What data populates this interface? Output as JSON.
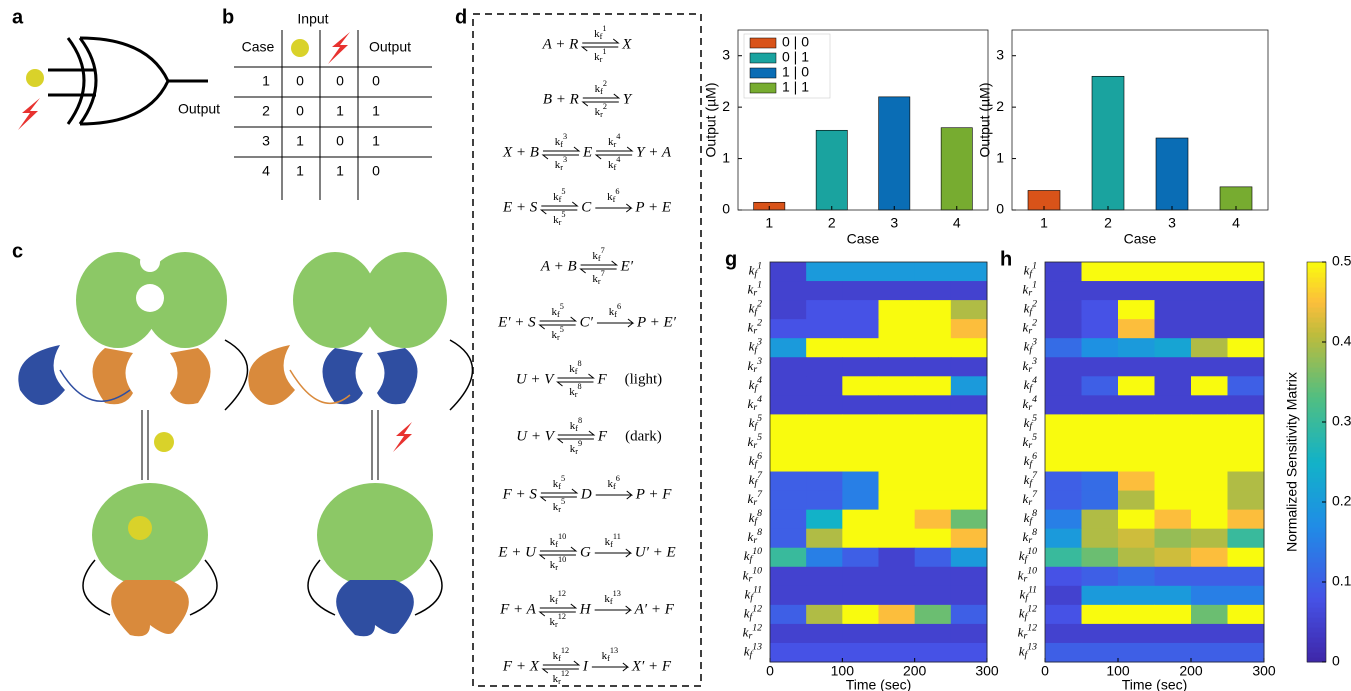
{
  "gate": {
    "label": "a",
    "output": "Output"
  },
  "truth_table": {
    "label": "b",
    "input": "Input",
    "headers": [
      "Case",
      "Output"
    ],
    "rows": [
      [
        1,
        0,
        0,
        0
      ],
      [
        2,
        0,
        1,
        1
      ],
      [
        3,
        1,
        0,
        1
      ],
      [
        4,
        1,
        1,
        0
      ]
    ]
  },
  "mechanism": {
    "label": "c"
  },
  "reactions": {
    "label": "d",
    "equations": [
      {
        "parts": [
          "A + R",
          {
            "top": {
              "k": "k",
              "s": "f",
              "n": "1"
            },
            "bottom": {
              "k": "k",
              "s": "r",
              "n": "1"
            }
          },
          "X"
        ]
      },
      {
        "parts": [
          "B + R",
          {
            "top": {
              "k": "k",
              "s": "f",
              "n": "2"
            },
            "bottom": {
              "k": "k",
              "s": "r",
              "n": "2"
            }
          },
          "Y"
        ]
      },
      {
        "parts": [
          "X + B",
          {
            "top": {
              "k": "k",
              "s": "f",
              "n": "3"
            },
            "bottom": {
              "k": "k",
              "s": "r",
              "n": "3"
            }
          },
          "E",
          {
            "top": {
              "k": "k",
              "s": "r",
              "n": "4"
            },
            "bottom": {
              "k": "k",
              "s": "f",
              "n": "4"
            }
          },
          "Y + A"
        ]
      },
      {
        "parts": [
          "E + S",
          {
            "top": {
              "k": "k",
              "s": "f",
              "n": "5"
            },
            "bottom": {
              "k": "k",
              "s": "r",
              "n": "5"
            }
          },
          "C",
          {
            "top": {
              "k": "k",
              "s": "f",
              "n": "6"
            }
          },
          "P + E"
        ]
      },
      {
        "parts": [
          "A + B",
          {
            "top": {
              "k": "k",
              "s": "f",
              "n": "7"
            },
            "bottom": {
              "k": "k",
              "s": "r",
              "n": "7"
            }
          },
          "E′"
        ]
      },
      {
        "parts": [
          "E′ + S",
          {
            "top": {
              "k": "k",
              "s": "f",
              "n": "5"
            },
            "bottom": {
              "k": "k",
              "s": "r",
              "n": "5"
            }
          },
          "C′",
          {
            "top": {
              "k": "k",
              "s": "f",
              "n": "6"
            }
          },
          "P + E′"
        ]
      },
      {
        "parts": [
          "U + V",
          {
            "top": {
              "k": "k",
              "s": "f",
              "n": "8"
            },
            "bottom": {
              "k": "k",
              "s": "r",
              "n": "8"
            }
          },
          "F"
        ],
        "note": "(light)"
      },
      {
        "parts": [
          "U + V",
          {
            "top": {
              "k": "k",
              "s": "f",
              "n": "8"
            },
            "bottom": {
              "k": "k",
              "s": "r",
              "n": "9"
            }
          },
          "F"
        ],
        "note": "(dark)"
      },
      {
        "parts": [
          "F + S",
          {
            "top": {
              "k": "k",
              "s": "f",
              "n": "5"
            },
            "bottom": {
              "k": "k",
              "s": "r",
              "n": "5"
            }
          },
          "D",
          {
            "top": {
              "k": "k",
              "s": "f",
              "n": "6"
            }
          },
          "P + F"
        ]
      },
      {
        "parts": [
          "E + U",
          {
            "top": {
              "k": "k",
              "s": "f",
              "n": "10"
            },
            "bottom": {
              "k": "k",
              "s": "r",
              "n": "10"
            }
          },
          "G",
          {
            "top": {
              "k": "k",
              "s": "f",
              "n": "11"
            }
          },
          "U′ + E"
        ]
      },
      {
        "parts": [
          "F + A",
          {
            "top": {
              "k": "k",
              "s": "f",
              "n": "12"
            },
            "bottom": {
              "k": "k",
              "s": "r",
              "n": "12"
            }
          },
          "H",
          {
            "top": {
              "k": "k",
              "s": "f",
              "n": "13"
            }
          },
          "A′ + F"
        ]
      },
      {
        "parts": [
          "F + X",
          {
            "top": {
              "k": "k",
              "s": "f",
              "n": "12"
            },
            "bottom": {
              "k": "k",
              "s": "r",
              "n": "12"
            }
          },
          "I",
          {
            "top": {
              "k": "k",
              "s": "f",
              "n": "13"
            }
          },
          "X′ + F"
        ]
      }
    ]
  },
  "chart_data": [
    {
      "type": "bar",
      "categories": [
        "1",
        "2",
        "3",
        "4"
      ],
      "values": [
        0.15,
        1.55,
        2.2,
        1.6
      ],
      "colors": [
        "#d95319",
        "#1aa39f",
        "#0a6db5",
        "#77ac30"
      ],
      "legend": [
        "0 | 0",
        "0 | 1",
        "1 | 0",
        "1 | 1"
      ],
      "xlabel": "Case",
      "ylabel": "Output (µM)",
      "ylim": [
        0,
        3.5
      ],
      "yticks": [
        0,
        1,
        2,
        3
      ]
    },
    {
      "type": "bar",
      "categories": [
        "1",
        "2",
        "3",
        "4"
      ],
      "values": [
        0.38,
        2.6,
        1.4,
        0.45
      ],
      "colors": [
        "#d95319",
        "#1aa39f",
        "#0a6db5",
        "#77ac30"
      ],
      "xlabel": "Case",
      "ylabel": "Output (µM)",
      "ylim": [
        0,
        3.5
      ],
      "yticks": [
        0,
        1,
        2,
        3
      ]
    },
    {
      "type": "heatmap",
      "panel": "g",
      "xlabel": "Time (sec)",
      "xlim": [
        0,
        300
      ],
      "xticks": [
        0,
        100,
        200,
        300
      ],
      "x": [
        0,
        50,
        100,
        150,
        200,
        250,
        300
      ],
      "clim": [
        0,
        0.5
      ],
      "rows": [
        {
          "k": "k",
          "s": "f",
          "n": "1"
        },
        {
          "k": "k",
          "s": "r",
          "n": "1"
        },
        {
          "k": "k",
          "s": "f",
          "n": "2"
        },
        {
          "k": "k",
          "s": "r",
          "n": "2"
        },
        {
          "k": "k",
          "s": "f",
          "n": "3"
        },
        {
          "k": "k",
          "s": "r",
          "n": "3"
        },
        {
          "k": "k",
          "s": "f",
          "n": "4"
        },
        {
          "k": "k",
          "s": "r",
          "n": "4"
        },
        {
          "k": "k",
          "s": "f",
          "n": "5"
        },
        {
          "k": "k",
          "s": "r",
          "n": "5"
        },
        {
          "k": "k",
          "s": "f",
          "n": "6"
        },
        {
          "k": "k",
          "s": "f",
          "n": "7"
        },
        {
          "k": "k",
          "s": "r",
          "n": "7"
        },
        {
          "k": "k",
          "s": "f",
          "n": "8"
        },
        {
          "k": "k",
          "s": "r",
          "n": "8"
        },
        {
          "k": "k",
          "s": "f",
          "n": "10"
        },
        {
          "k": "k",
          "s": "r",
          "n": "10"
        },
        {
          "k": "k",
          "s": "f",
          "n": "11"
        },
        {
          "k": "k",
          "s": "f",
          "n": "12"
        },
        {
          "k": "k",
          "s": "r",
          "n": "12"
        },
        {
          "k": "k",
          "s": "f",
          "n": "13"
        }
      ],
      "values": [
        [
          0.05,
          0.2,
          0.2,
          0.2,
          0.2,
          0.2
        ],
        [
          0.05,
          0.05,
          0.05,
          0.05,
          0.05,
          0.05
        ],
        [
          0.05,
          0.08,
          0.08,
          0.5,
          0.5,
          0.4
        ],
        [
          0.08,
          0.08,
          0.08,
          0.5,
          0.5,
          0.45
        ],
        [
          0.2,
          0.5,
          0.5,
          0.5,
          0.5,
          0.5
        ],
        [
          0.05,
          0.05,
          0.05,
          0.05,
          0.05,
          0.05
        ],
        [
          0.05,
          0.05,
          0.5,
          0.5,
          0.5,
          0.2
        ],
        [
          0.05,
          0.05,
          0.05,
          0.05,
          0.05,
          0.05
        ],
        [
          0.5,
          0.5,
          0.5,
          0.5,
          0.5,
          0.5
        ],
        [
          0.5,
          0.5,
          0.5,
          0.5,
          0.5,
          0.5
        ],
        [
          0.5,
          0.5,
          0.5,
          0.5,
          0.5,
          0.5
        ],
        [
          0.1,
          0.1,
          0.15,
          0.5,
          0.5,
          0.5
        ],
        [
          0.1,
          0.1,
          0.15,
          0.5,
          0.5,
          0.5
        ],
        [
          0.1,
          0.25,
          0.5,
          0.5,
          0.45,
          0.35
        ],
        [
          0.1,
          0.4,
          0.5,
          0.5,
          0.5,
          0.45
        ],
        [
          0.3,
          0.15,
          0.1,
          0.05,
          0.1,
          0.2
        ],
        [
          0.05,
          0.05,
          0.05,
          0.05,
          0.05,
          0.05
        ],
        [
          0.05,
          0.05,
          0.05,
          0.05,
          0.05,
          0.05
        ],
        [
          0.1,
          0.4,
          0.5,
          0.45,
          0.35,
          0.1
        ],
        [
          0.05,
          0.05,
          0.05,
          0.05,
          0.05,
          0.05
        ],
        [
          0.08,
          0.08,
          0.08,
          0.08,
          0.08,
          0.08
        ]
      ]
    },
    {
      "type": "heatmap",
      "panel": "h",
      "xlabel": "Time (sec)",
      "xlim": [
        0,
        300
      ],
      "xticks": [
        0,
        100,
        200,
        300
      ],
      "x": [
        0,
        50,
        100,
        150,
        200,
        250,
        300
      ],
      "clim": [
        0,
        0.5
      ],
      "rows": [
        {
          "k": "k",
          "s": "f",
          "n": "1"
        },
        {
          "k": "k",
          "s": "r",
          "n": "1"
        },
        {
          "k": "k",
          "s": "f",
          "n": "2"
        },
        {
          "k": "k",
          "s": "r",
          "n": "2"
        },
        {
          "k": "k",
          "s": "f",
          "n": "3"
        },
        {
          "k": "k",
          "s": "r",
          "n": "3"
        },
        {
          "k": "k",
          "s": "f",
          "n": "4"
        },
        {
          "k": "k",
          "s": "r",
          "n": "4"
        },
        {
          "k": "k",
          "s": "f",
          "n": "5"
        },
        {
          "k": "k",
          "s": "r",
          "n": "5"
        },
        {
          "k": "k",
          "s": "f",
          "n": "6"
        },
        {
          "k": "k",
          "s": "f",
          "n": "7"
        },
        {
          "k": "k",
          "s": "r",
          "n": "7"
        },
        {
          "k": "k",
          "s": "f",
          "n": "8"
        },
        {
          "k": "k",
          "s": "r",
          "n": "8"
        },
        {
          "k": "k",
          "s": "f",
          "n": "10"
        },
        {
          "k": "k",
          "s": "r",
          "n": "10"
        },
        {
          "k": "k",
          "s": "f",
          "n": "11"
        },
        {
          "k": "k",
          "s": "f",
          "n": "12"
        },
        {
          "k": "k",
          "s": "r",
          "n": "12"
        },
        {
          "k": "k",
          "s": "f",
          "n": "13"
        }
      ],
      "values": [
        [
          0.05,
          0.5,
          0.5,
          0.5,
          0.5,
          0.5
        ],
        [
          0.05,
          0.05,
          0.05,
          0.05,
          0.05,
          0.05
        ],
        [
          0.05,
          0.08,
          0.5,
          0.05,
          0.05,
          0.05
        ],
        [
          0.05,
          0.08,
          0.45,
          0.05,
          0.05,
          0.05
        ],
        [
          0.12,
          0.18,
          0.2,
          0.22,
          0.4,
          0.5
        ],
        [
          0.05,
          0.05,
          0.05,
          0.05,
          0.05,
          0.05
        ],
        [
          0.05,
          0.1,
          0.5,
          0.05,
          0.5,
          0.1
        ],
        [
          0.05,
          0.05,
          0.05,
          0.05,
          0.05,
          0.05
        ],
        [
          0.5,
          0.5,
          0.5,
          0.5,
          0.5,
          0.5
        ],
        [
          0.5,
          0.5,
          0.5,
          0.5,
          0.5,
          0.5
        ],
        [
          0.5,
          0.5,
          0.5,
          0.5,
          0.5,
          0.5
        ],
        [
          0.1,
          0.12,
          0.45,
          0.5,
          0.5,
          0.4
        ],
        [
          0.1,
          0.12,
          0.4,
          0.5,
          0.5,
          0.4
        ],
        [
          0.15,
          0.4,
          0.5,
          0.45,
          0.5,
          0.45
        ],
        [
          0.2,
          0.4,
          0.42,
          0.38,
          0.4,
          0.3
        ],
        [
          0.3,
          0.35,
          0.4,
          0.42,
          0.45,
          0.5
        ],
        [
          0.08,
          0.1,
          0.12,
          0.1,
          0.1,
          0.1
        ],
        [
          0.05,
          0.2,
          0.2,
          0.2,
          0.15,
          0.15
        ],
        [
          0.08,
          0.5,
          0.5,
          0.5,
          0.35,
          0.5
        ],
        [
          0.05,
          0.05,
          0.05,
          0.05,
          0.05,
          0.05
        ],
        [
          0.1,
          0.1,
          0.1,
          0.1,
          0.1,
          0.1
        ]
      ],
      "colorbar": {
        "label": "Normalized Sensitivity Matrix",
        "ticks": [
          0,
          0.1,
          0.2,
          0.3,
          0.4,
          0.5
        ]
      }
    }
  ]
}
